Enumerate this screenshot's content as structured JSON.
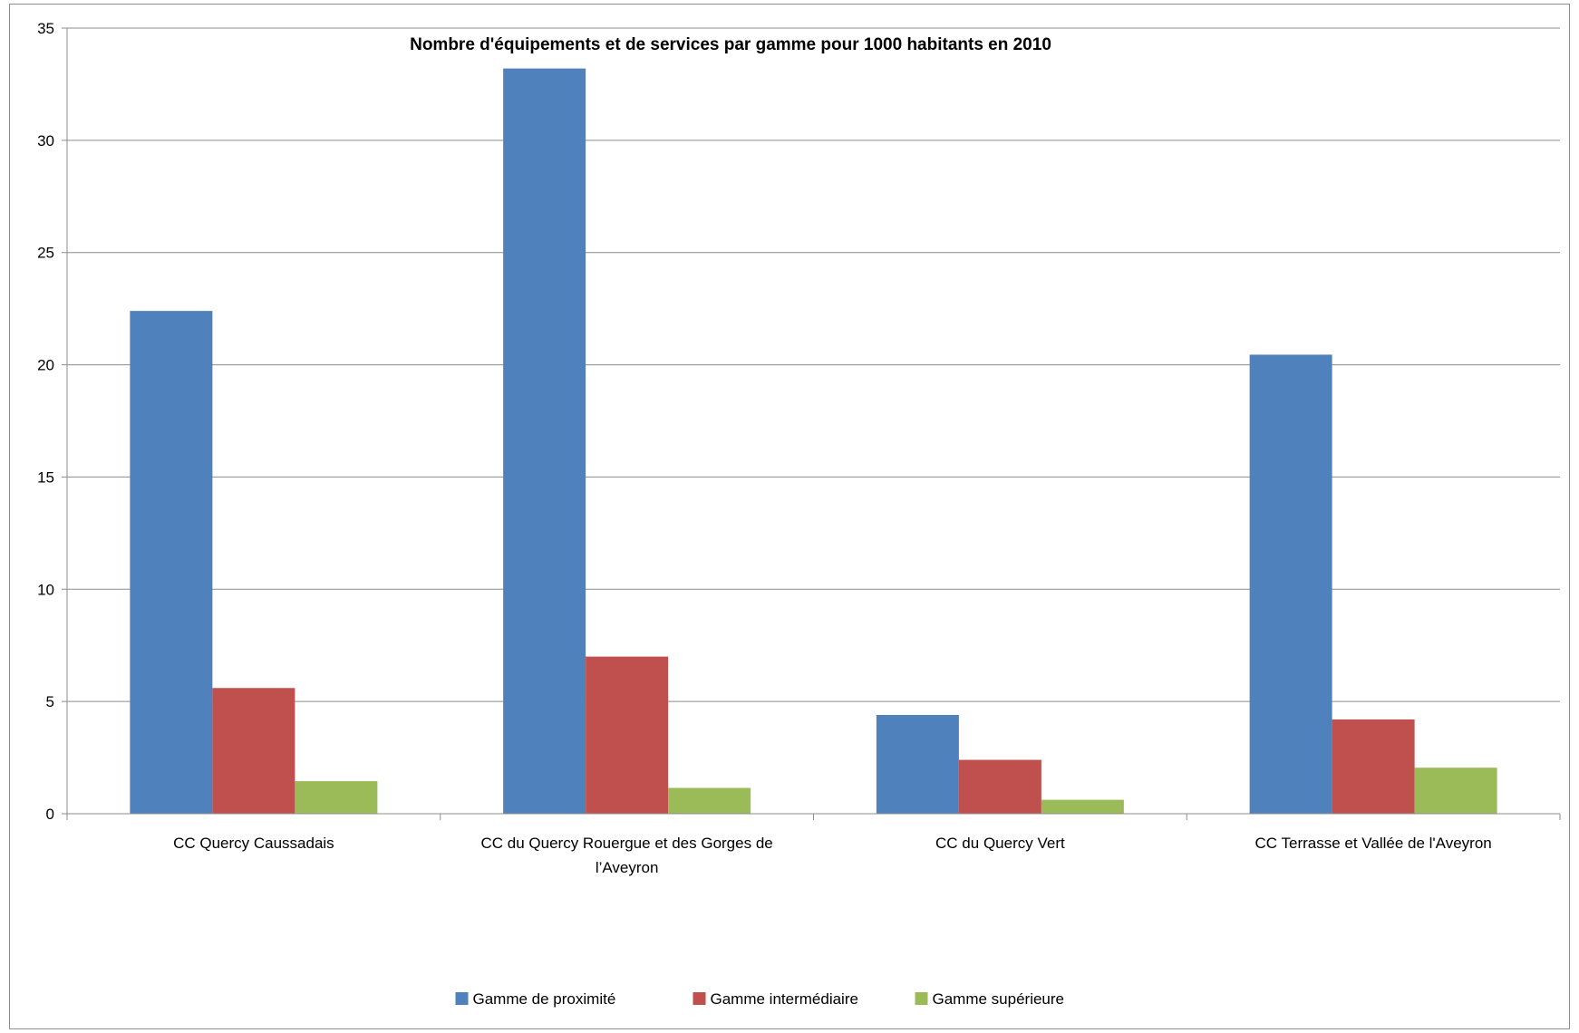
{
  "chart_data": {
    "type": "bar",
    "title": "Nombre d'équipements et de services par gamme pour 1000 habitants en 2010",
    "xlabel": "",
    "ylabel": "",
    "ylim": [
      0,
      35
    ],
    "yticks": [
      "0",
      "5",
      "10",
      "15",
      "20",
      "25",
      "30",
      "35"
    ],
    "grid": true,
    "legend_position": "bottom",
    "categories": [
      [
        "CC Quercy Caussadais"
      ],
      [
        "CC du Quercy Rouergue et des Gorges de",
        "l’Aveyron"
      ],
      [
        "CC du Quercy Vert"
      ],
      [
        "CC Terrasse et Vallée de l'Aveyron"
      ]
    ],
    "series": [
      {
        "name": "Gamme de proximité",
        "color": "#4f81bd",
        "values": [
          22.4,
          33.2,
          4.4,
          20.45
        ]
      },
      {
        "name": "Gamme intermédiaire",
        "color": "#c0504d",
        "values": [
          5.6,
          7.0,
          2.4,
          4.2
        ]
      },
      {
        "name": "Gamme supérieure",
        "color": "#9bbb59",
        "values": [
          1.45,
          1.15,
          0.62,
          2.05
        ]
      }
    ]
  }
}
